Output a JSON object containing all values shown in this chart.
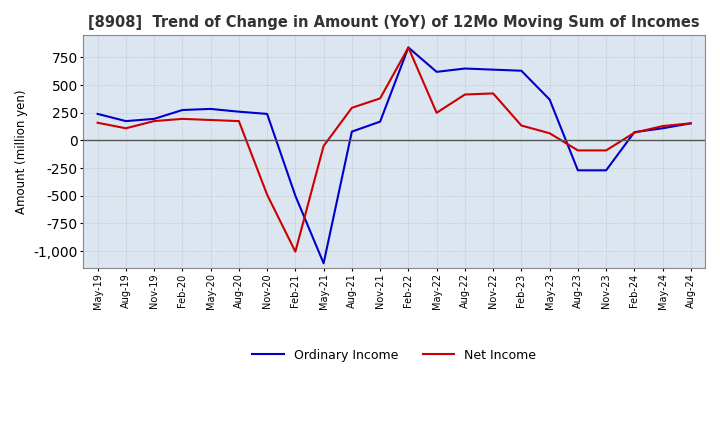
{
  "title": "[8908]  Trend of Change in Amount (YoY) of 12Mo Moving Sum of Incomes",
  "ylabel": "Amount (million yen)",
  "ylim": [
    -1150,
    950
  ],
  "yticks": [
    -1000,
    -750,
    -500,
    -250,
    0,
    250,
    500,
    750
  ],
  "background_color": "#ffffff",
  "plot_bg_color": "#dce6f0",
  "grid_color": "#aaaaaa",
  "ordinary_income_color": "#0000cc",
  "net_income_color": "#cc0000",
  "x_labels": [
    "May-19",
    "Aug-19",
    "Nov-19",
    "Feb-20",
    "May-20",
    "Aug-20",
    "Nov-20",
    "Feb-21",
    "May-21",
    "Aug-21",
    "Nov-21",
    "Feb-22",
    "May-22",
    "Aug-22",
    "Nov-22",
    "Feb-23",
    "May-23",
    "Aug-23",
    "Nov-23",
    "Feb-24",
    "May-24",
    "Aug-24"
  ],
  "ordinary_income": [
    240,
    175,
    195,
    275,
    285,
    260,
    240,
    -500,
    -1110,
    80,
    170,
    840,
    620,
    650,
    640,
    630,
    370,
    -270,
    -270,
    75,
    110,
    155
  ],
  "net_income": [
    160,
    110,
    175,
    195,
    185,
    175,
    -490,
    -1005,
    -50,
    295,
    380,
    840,
    250,
    415,
    425,
    135,
    65,
    -90,
    -90,
    70,
    130,
    155
  ],
  "legend_labels": [
    "Ordinary Income",
    "Net Income"
  ],
  "line_width": 1.5
}
